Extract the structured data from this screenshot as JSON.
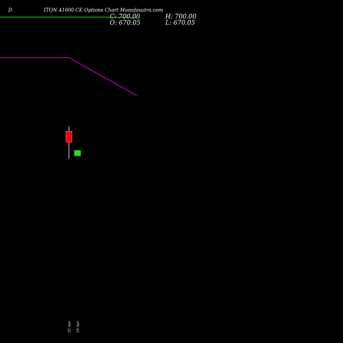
{
  "header": {
    "tag": "D",
    "title": "ITON 41000 CE Options Chart Munafasutra.com",
    "close": "C: 700.00",
    "high": "H: 700.00",
    "open": "O: 670.05",
    "low": "L: 670.05"
  },
  "chart_data": {
    "type": "candlestick",
    "colors": {
      "up": "#22dd22",
      "down": "#ff0000",
      "ma_green": "#00cc00",
      "ma_magenta": "#b000b0",
      "background": "#000000",
      "text": "#ffffff"
    },
    "ylim": [
      540,
      1220
    ],
    "candles": [
      {
        "index": 8,
        "label": "22 Apr",
        "open": 960,
        "high": 970,
        "low": 905,
        "close": 938,
        "color": "down"
      },
      {
        "index": 9,
        "label": "24 Apr",
        "open": 911,
        "high": 922,
        "low": 911,
        "close": 922,
        "color": "up"
      }
    ],
    "series": [
      {
        "color": "ma_green",
        "points": [
          [
            0,
            1186
          ],
          [
            12,
            1186
          ],
          [
            16,
            1185
          ]
        ]
      },
      {
        "color": "ma_magenta",
        "points": [
          [
            0,
            1106
          ],
          [
            8,
            1106
          ],
          [
            16,
            1030
          ]
        ]
      }
    ]
  }
}
